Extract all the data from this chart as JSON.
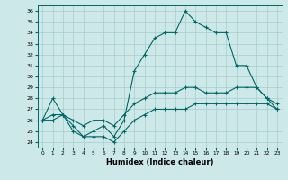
{
  "xlabel": "Humidex (Indice chaleur)",
  "background_color": "#cce8e8",
  "grid_color": "#aacccc",
  "line_color": "#006666",
  "xlim": [
    -0.5,
    23.5
  ],
  "ylim": [
    23.5,
    36.5
  ],
  "xticks": [
    0,
    1,
    2,
    3,
    4,
    5,
    6,
    7,
    8,
    9,
    10,
    11,
    12,
    13,
    14,
    15,
    16,
    17,
    18,
    19,
    20,
    21,
    22,
    23
  ],
  "yticks": [
    24,
    25,
    26,
    27,
    28,
    29,
    30,
    31,
    32,
    33,
    34,
    35,
    36
  ],
  "series": {
    "max": [
      26,
      28,
      26.5,
      25.5,
      24.5,
      25,
      25.5,
      24.5,
      26,
      30.5,
      32,
      33.5,
      34,
      34,
      36,
      35,
      34.5,
      34,
      34,
      31,
      31,
      29,
      28,
      27
    ],
    "mean": [
      26,
      26.5,
      26.5,
      26,
      25.5,
      26,
      26,
      25.5,
      26.5,
      27.5,
      28,
      28.5,
      28.5,
      28.5,
      29,
      29,
      28.5,
      28.5,
      28.5,
      29,
      29,
      29,
      28,
      27.5
    ],
    "min": [
      26,
      26,
      26.5,
      25,
      24.5,
      24.5,
      24.5,
      24,
      25,
      26,
      26.5,
      27,
      27,
      27,
      27,
      27.5,
      27.5,
      27.5,
      27.5,
      27.5,
      27.5,
      27.5,
      27.5,
      27
    ]
  }
}
